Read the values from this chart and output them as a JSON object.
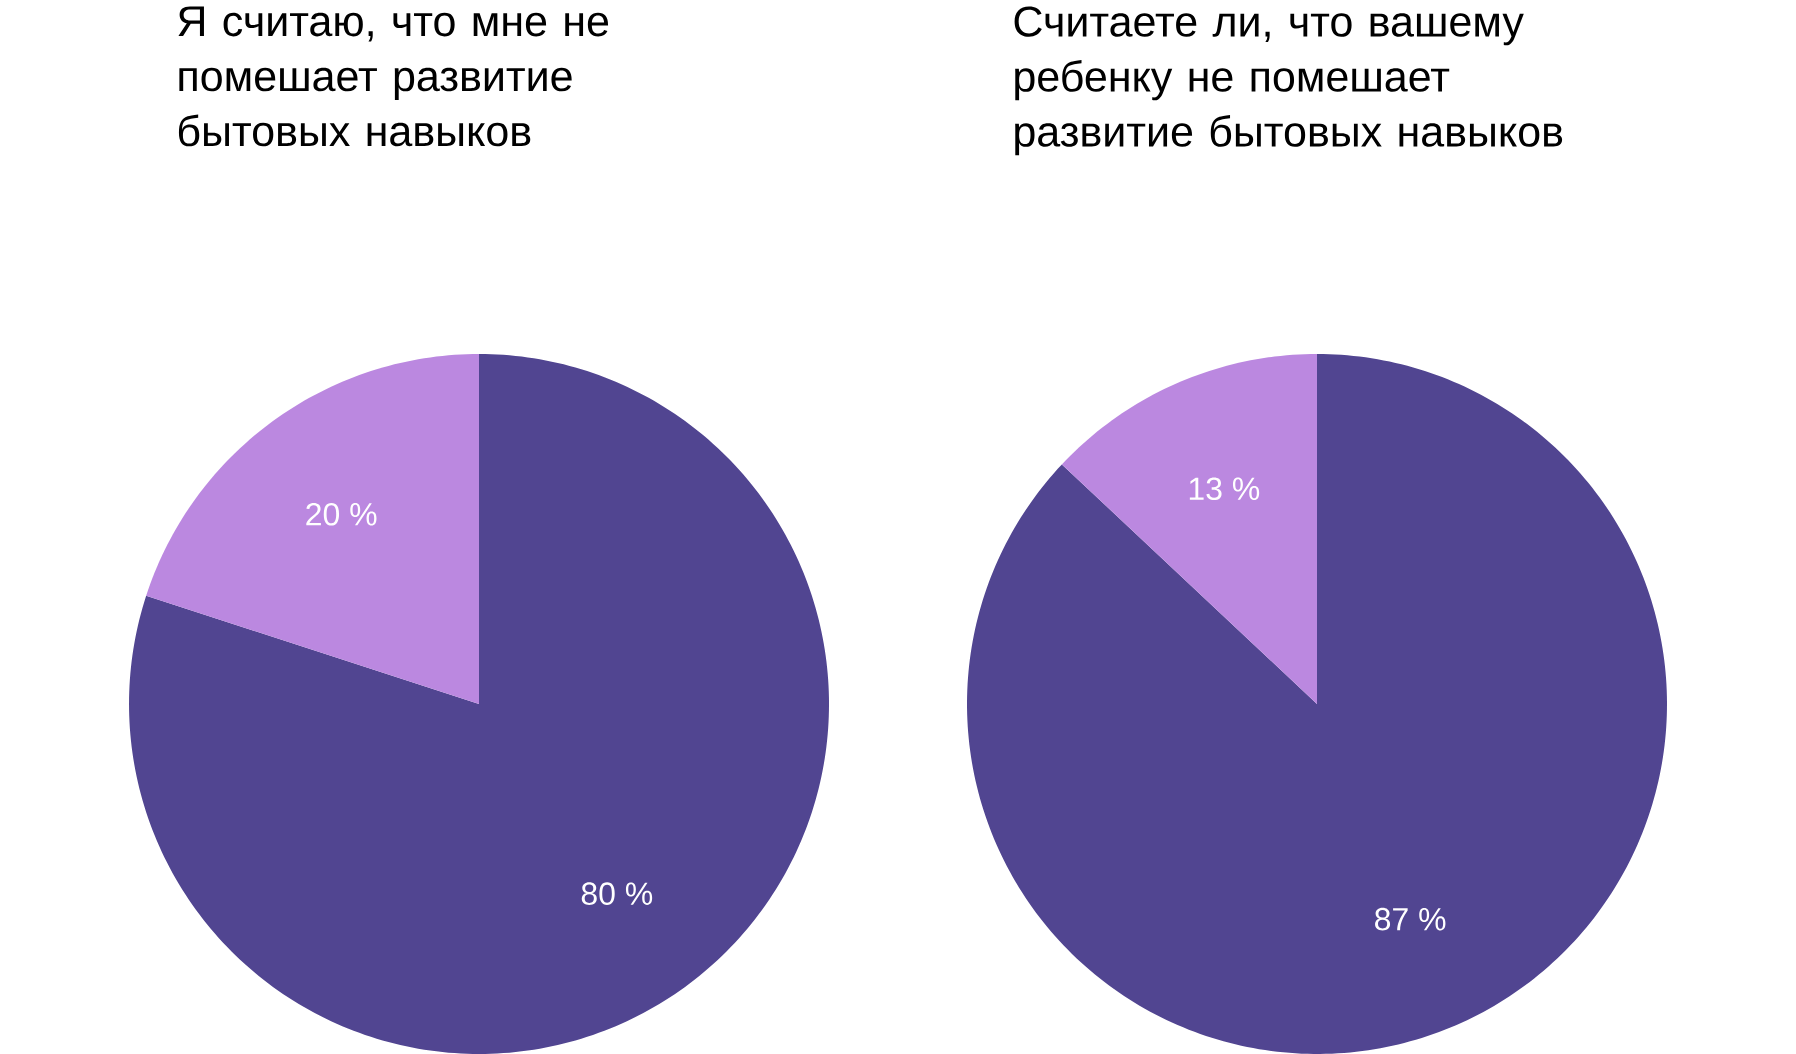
{
  "chart_data": [
    {
      "type": "pie",
      "title": "Я считаю, что мне не помешает развитие бытовых навыков",
      "categories": [
        null,
        null
      ],
      "values": [
        80,
        20
      ],
      "colors": [
        "#514591",
        "#bb88e0"
      ],
      "value_labels": [
        "80 %",
        "20 %"
      ]
    },
    {
      "type": "pie",
      "title": "Считаете ли, что вашему ребенку не помешает развитие бытовых навыков",
      "categories": [
        null,
        null
      ],
      "values": [
        87,
        13
      ],
      "colors": [
        "#514591",
        "#bb88e0"
      ],
      "value_labels": [
        "87 %",
        "13 %"
      ]
    }
  ]
}
